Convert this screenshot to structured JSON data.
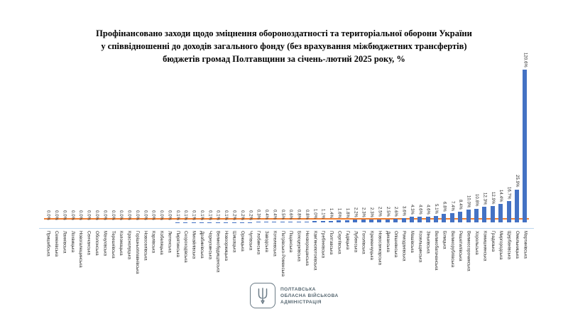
{
  "title": {
    "line1": "Профінансовано заходи щодо зміцнення обороноздатності та територіальної оборони України",
    "line2": "у співвідношенні до доходів загального фонду (без врахування міжбюджетних трансфертів)",
    "line3": "бюджетів громад Полтавщини за січень-лютий 2025 року, %"
  },
  "chart_data": {
    "type": "bar",
    "title": "Профінансовано заходи щодо зміцнення обороноздатності та територіальної оборони України у співвідношенні до доходів загального фонду (без врахування міжбюджетних трансфертів) бюджетів громад Полтавщини за січень-лютий 2025 року, %",
    "categories": [
      "Пришибська",
      "Семенівська",
      "Ланнівська",
      "Лохвицька",
      "Новогалещинська",
      "Сенчанська",
      "Оболонська",
      "Мачухівська",
      "Терешківська",
      "Коломацька",
      "Краснолуцька",
      "Горішньоплавнівська",
      "Новоселівська",
      "Карлівська",
      "Кобеляцька",
      "Лютенська",
      "Пирятинська",
      "Скороходівська",
      "Михайлівська",
      "Драбинівська",
      "Чорнухинська",
      "Великобудищанська",
      "Новооржицька",
      "Шишацька",
      "Оржицька",
      "Чутівська",
      "Глобинська",
      "Заводська",
      "Котелевська",
      "Петрівсько-Роменська",
      "Піщанська",
      "Білоцерківська",
      "Нехворощанська",
      "Кам'янопотоківська",
      "Гребінківська",
      "Полтавська",
      "Сергіївська",
      "Гадяцька",
      "Лубенська",
      "Гоголівська",
      "Кременчуцька",
      "Новосанжарська",
      "Диканська",
      "Опішнянська",
      "Ромоданівська",
      "Машівська",
      "Козельщинська",
      "Зіньківська",
      "Великобагачанська",
      "Білицька",
      "Великорублівська",
      "Решетилівська",
      "Великосорочинська",
      "Хорольська",
      "Комишнянська",
      "Градизька",
      "Миргородська",
      "Щербанівська",
      "Омельницька",
      "Мартинівська"
    ],
    "values": [
      0.0,
      0.0,
      0.0,
      0.0,
      0.0,
      0.0,
      0.0,
      0.0,
      0.0,
      0.0,
      0.0,
      0.0,
      0.0,
      0.0,
      0.0,
      0.0,
      0.1,
      0.1,
      0.1,
      0.1,
      0.1,
      0.1,
      0.1,
      0.2,
      0.2,
      0.2,
      0.3,
      0.4,
      0.4,
      0.5,
      0.6,
      0.8,
      0.8,
      1.0,
      1.1,
      1.4,
      1.6,
      1.8,
      2.2,
      2.3,
      2.3,
      2.5,
      2.5,
      2.6,
      3.6,
      4.3,
      4.6,
      4.6,
      5.1,
      6.8,
      7.4,
      8.4,
      10.0,
      10.8,
      12.3,
      12.9,
      14.4,
      16.7,
      25.9,
      120.6
    ],
    "value_label_format": "0.0%",
    "xlabel": "",
    "ylabel": "",
    "ylim": [
      0,
      125
    ],
    "grid": false,
    "legend": "none",
    "bar_color": "#4472C4",
    "axis_color": "#BDD7EE",
    "reference_line": {
      "value": 3.0,
      "color": "#ED7D31"
    }
  },
  "footer": {
    "logo_icon": "trident-icon",
    "org_line1": "ПОЛТАВСЬКА",
    "org_line2": "ОБЛАСНА ВІЙСЬКОВА",
    "org_line3": "АДМІНІСТРАЦІЯ"
  }
}
